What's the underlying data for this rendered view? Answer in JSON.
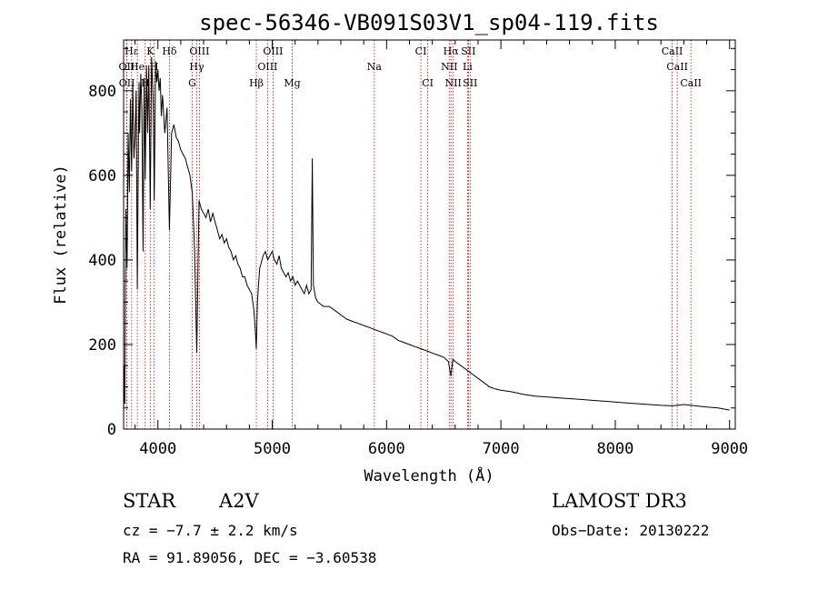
{
  "chart_data": {
    "type": "line",
    "title": "spec-56346-VB091S03V1_sp04-119.fits",
    "xlabel": "Wavelength (Å)",
    "ylabel": "Flux (relative)",
    "xlim": [
      3700,
      9050
    ],
    "ylim": [
      0,
      920
    ],
    "xticks": [
      4000,
      5000,
      6000,
      7000,
      8000,
      9000
    ],
    "yticks": [
      0,
      200,
      400,
      600,
      800
    ],
    "series": [
      {
        "name": "spectrum",
        "x": [
          3700,
          3705,
          3710,
          3715,
          3720,
          3730,
          3740,
          3750,
          3760,
          3770,
          3780,
          3790,
          3800,
          3810,
          3820,
          3830,
          3835,
          3840,
          3850,
          3860,
          3870,
          3880,
          3889,
          3900,
          3910,
          3920,
          3933,
          3945,
          3960,
          3968,
          3980,
          3990,
          4000,
          4010,
          4020,
          4030,
          4040,
          4060,
          4080,
          4101,
          4120,
          4140,
          4160,
          4180,
          4200,
          4220,
          4240,
          4260,
          4280,
          4300,
          4320,
          4340,
          4360,
          4380,
          4400,
          4420,
          4440,
          4460,
          4480,
          4500,
          4520,
          4540,
          4560,
          4580,
          4600,
          4620,
          4640,
          4660,
          4680,
          4700,
          4720,
          4740,
          4760,
          4780,
          4800,
          4820,
          4840,
          4850,
          4861,
          4870,
          4880,
          4890,
          4900,
          4920,
          4940,
          4960,
          4980,
          5000,
          5020,
          5040,
          5060,
          5080,
          5100,
          5120,
          5140,
          5160,
          5180,
          5200,
          5220,
          5240,
          5260,
          5280,
          5300,
          5320,
          5340,
          5350,
          5360,
          5380,
          5400,
          5450,
          5500,
          5550,
          5600,
          5650,
          5700,
          5750,
          5800,
          5850,
          5900,
          5950,
          6000,
          6050,
          6100,
          6150,
          6200,
          6250,
          6300,
          6350,
          6400,
          6450,
          6500,
          6540,
          6563,
          6580,
          6600,
          6650,
          6700,
          6750,
          6800,
          6850,
          6900,
          6950,
          7000,
          7050,
          7100,
          7150,
          7200,
          7300,
          7400,
          7500,
          7600,
          7700,
          7800,
          7900,
          8000,
          8100,
          8200,
          8300,
          8400,
          8500,
          8600,
          8700,
          8800,
          8900,
          9000
        ],
        "values": [
          30,
          150,
          60,
          350,
          520,
          380,
          700,
          560,
          780,
          610,
          820,
          640,
          690,
          800,
          330,
          700,
          820,
          700,
          840,
          760,
          420,
          830,
          590,
          860,
          700,
          860,
          520,
          880,
          760,
          540,
          870,
          820,
          850,
          800,
          830,
          740,
          790,
          700,
          760,
          470,
          700,
          720,
          690,
          680,
          660,
          650,
          640,
          620,
          600,
          560,
          430,
          180,
          540,
          520,
          510,
          500,
          520,
          490,
          510,
          490,
          470,
          450,
          460,
          440,
          450,
          430,
          420,
          400,
          410,
          390,
          380,
          360,
          360,
          340,
          330,
          320,
          280,
          240,
          190,
          300,
          340,
          380,
          390,
          410,
          420,
          400,
          410,
          420,
          400,
          390,
          410,
          380,
          370,
          360,
          370,
          350,
          360,
          340,
          350,
          340,
          330,
          320,
          340,
          320,
          330,
          640,
          340,
          310,
          300,
          290,
          290,
          280,
          270,
          260,
          255,
          250,
          245,
          240,
          235,
          230,
          225,
          220,
          210,
          205,
          200,
          195,
          190,
          185,
          180,
          175,
          170,
          160,
          125,
          165,
          160,
          150,
          140,
          130,
          120,
          110,
          100,
          95,
          92,
          90,
          88,
          85,
          82,
          78,
          76,
          74,
          72,
          70,
          68,
          66,
          64,
          62,
          60,
          58,
          56,
          55,
          58,
          55,
          52,
          50,
          45
        ]
      }
    ],
    "lines": [
      {
        "name": "Hε",
        "wl": 3770,
        "row": 0,
        "label": "Hε"
      },
      {
        "name": "K",
        "wl": 3933,
        "row": 0,
        "label": "K"
      },
      {
        "name": "Hδ",
        "wl": 4101,
        "row": 0,
        "label": "Hδ"
      },
      {
        "name": "OIII",
        "wl": 4363,
        "row": 0,
        "label": "OIII"
      },
      {
        "name": "OIII",
        "wl": 5007,
        "row": 0,
        "label": "OIII"
      },
      {
        "name": "CI",
        "wl": 6300,
        "row": 0,
        "label": "CI"
      },
      {
        "name": "Hα",
        "wl": 6563,
        "row": 0,
        "label": "Hα"
      },
      {
        "name": "SII",
        "wl": 6716,
        "row": 0,
        "label": "SII"
      },
      {
        "name": "CaII",
        "wl": 8498,
        "row": 0,
        "label": "CaII"
      },
      {
        "name": "OII",
        "wl": 3727,
        "row": 1,
        "label": "OII"
      },
      {
        "name": "He",
        "wl": 3820,
        "row": 1,
        "label": "He"
      },
      {
        "name": "H",
        "wl": 3968,
        "row": 1,
        "label": "H"
      },
      {
        "name": "Hγ",
        "wl": 4340,
        "row": 1,
        "label": "Hγ"
      },
      {
        "name": "OIII",
        "wl": 4959,
        "row": 1,
        "label": "OIII"
      },
      {
        "name": "Na",
        "wl": 5893,
        "row": 1,
        "label": "Na"
      },
      {
        "name": "NII",
        "wl": 6548,
        "row": 1,
        "label": "NII"
      },
      {
        "name": "Li",
        "wl": 6708,
        "row": 1,
        "label": "Li"
      },
      {
        "name": "CaII",
        "wl": 8542,
        "row": 1,
        "label": "CaII"
      },
      {
        "name": "OII",
        "wl": 3729,
        "row": 2,
        "label": "OII"
      },
      {
        "name": "Hζ",
        "wl": 3889,
        "row": 2,
        "label": "H"
      },
      {
        "name": "G",
        "wl": 4300,
        "row": 2,
        "label": "G"
      },
      {
        "name": "Hβ",
        "wl": 4861,
        "row": 2,
        "label": "Hβ"
      },
      {
        "name": "Mg",
        "wl": 5175,
        "row": 2,
        "label": "Mg"
      },
      {
        "name": "CI",
        "wl": 6360,
        "row": 2,
        "label": "CI"
      },
      {
        "name": "NII",
        "wl": 6583,
        "row": 2,
        "label": "NII"
      },
      {
        "name": "SII",
        "wl": 6731,
        "row": 2,
        "label": "SII"
      },
      {
        "name": "CaII",
        "wl": 8662,
        "row": 2,
        "label": "CaII"
      }
    ]
  },
  "info": {
    "class": "STAR",
    "subclass": "A2V",
    "survey": "LAMOST DR3",
    "cz": "cz = −7.7 ± 2.2 km/s",
    "obs_date": "Obs−Date: 20130222",
    "coords": "RA =  91.89056, DEC =  −3.60538"
  },
  "colors": {
    "line_marker": "#cc0000",
    "spectrum": "#000000"
  }
}
